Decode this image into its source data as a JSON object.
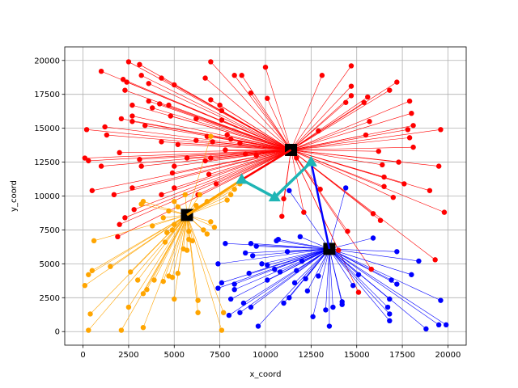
{
  "chart_data": {
    "type": "scatter",
    "title": "",
    "xlabel": "x_coord",
    "ylabel": "y_coord",
    "xlim": [
      -1000,
      21000
    ],
    "ylim": [
      -1000,
      21000
    ],
    "xticks": [
      0,
      2500,
      5000,
      7500,
      10000,
      12500,
      15000,
      17500,
      20000
    ],
    "yticks": [
      0,
      2500,
      5000,
      7500,
      10000,
      12500,
      15000,
      17500,
      20000
    ],
    "grid": true,
    "colors": {
      "red": "#ff0000",
      "blue": "#0000ff",
      "orange": "#ffa500",
      "center": "#000000",
      "triangle": "#1fb5b5"
    },
    "clusters": [
      {
        "color": "red",
        "center": [
          11400,
          13400
        ],
        "points": [
          [
            2500,
            19900
          ],
          [
            3100,
            19700
          ],
          [
            1000,
            19200
          ],
          [
            2200,
            18600
          ],
          [
            3200,
            18900
          ],
          [
            2400,
            18400
          ],
          [
            3600,
            18300
          ],
          [
            4300,
            18700
          ],
          [
            5000,
            18200
          ],
          [
            6700,
            18700
          ],
          [
            7000,
            19900
          ],
          [
            8700,
            18900
          ],
          [
            10000,
            19500
          ],
          [
            13100,
            18900
          ],
          [
            14700,
            19600
          ],
          [
            14700,
            18100
          ],
          [
            14700,
            17400
          ],
          [
            14400,
            16900
          ],
          [
            15600,
            17300
          ],
          [
            15400,
            16900
          ],
          [
            17200,
            18400
          ],
          [
            16800,
            17800
          ],
          [
            17900,
            17000
          ],
          [
            18000,
            16100
          ],
          [
            18100,
            15200
          ],
          [
            17800,
            14900
          ],
          [
            17900,
            14300
          ],
          [
            18100,
            13600
          ],
          [
            19600,
            14900
          ],
          [
            19500,
            12200
          ],
          [
            19000,
            10400
          ],
          [
            19800,
            8800
          ],
          [
            19300,
            5300
          ],
          [
            17300,
            12500
          ],
          [
            17600,
            10900
          ],
          [
            17000,
            9900
          ],
          [
            16200,
            13300
          ],
          [
            16500,
            11400
          ],
          [
            15700,
            15500
          ],
          [
            15500,
            14500
          ],
          [
            15900,
            8700
          ],
          [
            16300,
            8200
          ],
          [
            16500,
            10700
          ],
          [
            16400,
            12300
          ],
          [
            13000,
            10500
          ],
          [
            12900,
            14800
          ],
          [
            11700,
            12800
          ],
          [
            11000,
            9800
          ],
          [
            12100,
            8800
          ],
          [
            10100,
            17200
          ],
          [
            9200,
            17600
          ],
          [
            8300,
            18900
          ],
          [
            7500,
            16700
          ],
          [
            7600,
            16300
          ],
          [
            7000,
            17100
          ],
          [
            7600,
            15600
          ],
          [
            7900,
            14500
          ],
          [
            8100,
            14200
          ],
          [
            8600,
            13900
          ],
          [
            8900,
            13100
          ],
          [
            9500,
            13000
          ],
          [
            7800,
            13400
          ],
          [
            6800,
            14400
          ],
          [
            6200,
            15700
          ],
          [
            6200,
            14100
          ],
          [
            5700,
            12800
          ],
          [
            5200,
            13800
          ],
          [
            4300,
            14000
          ],
          [
            4200,
            16800
          ],
          [
            4700,
            16700
          ],
          [
            4800,
            15900
          ],
          [
            3600,
            17000
          ],
          [
            3800,
            16500
          ],
          [
            2700,
            16700
          ],
          [
            2300,
            17800
          ],
          [
            2100,
            15700
          ],
          [
            2700,
            15900
          ],
          [
            2700,
            15500
          ],
          [
            1200,
            15100
          ],
          [
            1300,
            14500
          ],
          [
            3400,
            15200
          ],
          [
            200,
            14900
          ],
          [
            2000,
            13200
          ],
          [
            100,
            12800
          ],
          [
            300,
            12600
          ],
          [
            1000,
            12200
          ],
          [
            500,
            10400
          ],
          [
            2700,
            10600
          ],
          [
            1700,
            10100
          ],
          [
            3100,
            12700
          ],
          [
            3200,
            12200
          ],
          [
            5000,
            12200
          ],
          [
            4900,
            11700
          ],
          [
            5000,
            10600
          ],
          [
            4300,
            10100
          ],
          [
            6700,
            12600
          ],
          [
            6900,
            11600
          ],
          [
            7300,
            10900
          ],
          [
            6300,
            10100
          ],
          [
            2800,
            9000
          ],
          [
            2300,
            8400
          ],
          [
            2000,
            7900
          ],
          [
            1900,
            7000
          ],
          [
            10900,
            8500
          ],
          [
            14000,
            6000
          ],
          [
            14500,
            7400
          ],
          [
            15100,
            2900
          ],
          [
            15800,
            4600
          ],
          [
            7100,
            14000
          ],
          [
            7000,
            12800
          ]
        ]
      },
      {
        "color": "blue",
        "center": [
          13500,
          6100
        ],
        "points": [
          [
            14400,
            10600
          ],
          [
            15900,
            6900
          ],
          [
            17200,
            5900
          ],
          [
            18400,
            5200
          ],
          [
            18000,
            4200
          ],
          [
            17200,
            3500
          ],
          [
            16900,
            3800
          ],
          [
            16800,
            2400
          ],
          [
            16700,
            1800
          ],
          [
            16800,
            1300
          ],
          [
            16800,
            800
          ],
          [
            18800,
            200
          ],
          [
            19600,
            2300
          ],
          [
            19500,
            500
          ],
          [
            19900,
            500
          ],
          [
            15100,
            4200
          ],
          [
            14800,
            3400
          ],
          [
            14200,
            2200
          ],
          [
            14200,
            2000
          ],
          [
            13700,
            1800
          ],
          [
            13300,
            1600
          ],
          [
            12600,
            1100
          ],
          [
            13500,
            400
          ],
          [
            12900,
            4100
          ],
          [
            12200,
            3900
          ],
          [
            12000,
            5200
          ],
          [
            11700,
            4500
          ],
          [
            11600,
            3600
          ],
          [
            11300,
            2500
          ],
          [
            11200,
            5900
          ],
          [
            10800,
            4400
          ],
          [
            10500,
            4600
          ],
          [
            10600,
            6700
          ],
          [
            10100,
            4900
          ],
          [
            10100,
            3800
          ],
          [
            9800,
            5000
          ],
          [
            9500,
            6300
          ],
          [
            9300,
            5600
          ],
          [
            9200,
            6500
          ],
          [
            9100,
            4300
          ],
          [
            8900,
            5800
          ],
          [
            9200,
            1800
          ],
          [
            8800,
            2100
          ],
          [
            8600,
            1400
          ],
          [
            8300,
            3100
          ],
          [
            8300,
            3500
          ],
          [
            7600,
            3600
          ],
          [
            7400,
            3200
          ],
          [
            7400,
            5000
          ],
          [
            7800,
            6500
          ],
          [
            8100,
            2400
          ],
          [
            8000,
            1200
          ],
          [
            9600,
            400
          ],
          [
            11000,
            2100
          ],
          [
            12300,
            3000
          ],
          [
            11900,
            7000
          ],
          [
            11300,
            10400
          ],
          [
            10700,
            6800
          ]
        ]
      },
      {
        "color": "orange",
        "center": [
          5700,
          8600
        ],
        "points": [
          [
            7000,
            14400
          ],
          [
            6400,
            10100
          ],
          [
            6800,
            9600
          ],
          [
            5600,
            10100
          ],
          [
            6200,
            9300
          ],
          [
            5200,
            9200
          ],
          [
            5000,
            9600
          ],
          [
            4700,
            8900
          ],
          [
            4400,
            8400
          ],
          [
            3300,
            9600
          ],
          [
            3200,
            9400
          ],
          [
            3800,
            7800
          ],
          [
            4600,
            7300
          ],
          [
            4500,
            6600
          ],
          [
            4900,
            7500
          ],
          [
            5000,
            7900
          ],
          [
            5800,
            7400
          ],
          [
            5800,
            6800
          ],
          [
            5500,
            6100
          ],
          [
            6000,
            6700
          ],
          [
            6800,
            7200
          ],
          [
            6600,
            7500
          ],
          [
            7000,
            8100
          ],
          [
            7200,
            7700
          ],
          [
            7900,
            9700
          ],
          [
            8100,
            10100
          ],
          [
            8300,
            10500
          ],
          [
            8600,
            10900
          ],
          [
            5700,
            6000
          ],
          [
            4900,
            4000
          ],
          [
            5200,
            4300
          ],
          [
            4700,
            4100
          ],
          [
            4400,
            3700
          ],
          [
            3500,
            3100
          ],
          [
            3900,
            3800
          ],
          [
            3000,
            3800
          ],
          [
            2600,
            4400
          ],
          [
            2500,
            1800
          ],
          [
            3300,
            2800
          ],
          [
            3300,
            300
          ],
          [
            2100,
            100
          ],
          [
            1500,
            4800
          ],
          [
            600,
            6700
          ],
          [
            500,
            4500
          ],
          [
            300,
            4200
          ],
          [
            100,
            3400
          ],
          [
            400,
            1300
          ],
          [
            300,
            100
          ],
          [
            5000,
            2400
          ],
          [
            6300,
            1400
          ],
          [
            6300,
            2300
          ],
          [
            7700,
            1400
          ],
          [
            7600,
            100
          ]
        ]
      }
    ],
    "triangles": [
      [
        8700,
        11200
      ],
      [
        10500,
        9900
      ],
      [
        12500,
        12500
      ]
    ]
  }
}
